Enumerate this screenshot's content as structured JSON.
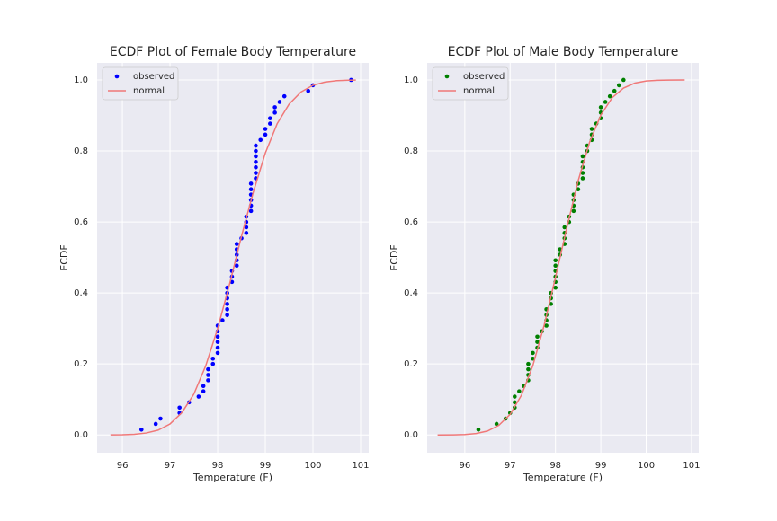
{
  "chart_data": [
    {
      "type": "scatter",
      "title": "ECDF Plot of Female Body Temperature",
      "xlabel": "Temperature (F)",
      "ylabel": "ECDF",
      "xlim": [
        95.47,
        101.17
      ],
      "ylim": [
        -0.05,
        1.048
      ],
      "xticks": [
        96,
        97,
        98,
        99,
        100,
        101
      ],
      "yticks": [
        {
          "value": 0,
          "label": "0.0"
        },
        0.2,
        0.4,
        0.6,
        0.8,
        {
          "value": 1,
          "label": "1.0"
        }
      ],
      "grid": true,
      "legend": "upper left",
      "series": [
        {
          "name": "observed",
          "type": "scatter",
          "color": "#0000ff",
          "x": [
            96.4,
            96.7,
            96.8,
            97.2,
            97.2,
            97.4,
            97.6,
            97.7,
            97.7,
            97.8,
            97.8,
            97.8,
            97.9,
            97.9,
            98.0,
            98.0,
            98.0,
            98.0,
            98.0,
            98.0,
            98.1,
            98.2,
            98.2,
            98.2,
            98.2,
            98.2,
            98.2,
            98.3,
            98.3,
            98.3,
            98.4,
            98.4,
            98.4,
            98.4,
            98.4,
            98.5,
            98.6,
            98.6,
            98.6,
            98.6,
            98.7,
            98.7,
            98.7,
            98.7,
            98.7,
            98.7,
            98.8,
            98.8,
            98.8,
            98.8,
            98.8,
            98.8,
            98.8,
            98.9,
            99.0,
            99.0,
            99.1,
            99.1,
            99.2,
            99.2,
            99.3,
            99.4,
            99.9,
            100.0,
            100.8
          ],
          "values": [
            0.015,
            0.031,
            0.046,
            0.062,
            0.077,
            0.092,
            0.108,
            0.123,
            0.138,
            0.154,
            0.169,
            0.185,
            0.2,
            0.215,
            0.231,
            0.246,
            0.262,
            0.277,
            0.292,
            0.308,
            0.323,
            0.338,
            0.354,
            0.369,
            0.385,
            0.4,
            0.415,
            0.431,
            0.446,
            0.462,
            0.477,
            0.492,
            0.508,
            0.523,
            0.538,
            0.554,
            0.569,
            0.585,
            0.6,
            0.615,
            0.631,
            0.646,
            0.662,
            0.677,
            0.692,
            0.708,
            0.723,
            0.738,
            0.754,
            0.769,
            0.785,
            0.8,
            0.815,
            0.831,
            0.846,
            0.862,
            0.877,
            0.892,
            0.908,
            0.923,
            0.938,
            0.954,
            0.969,
            0.985,
            1.0
          ]
        },
        {
          "name": "normal",
          "type": "line",
          "color": "#f07878",
          "x": [
            95.75,
            96.0,
            96.25,
            96.5,
            96.75,
            97.0,
            97.25,
            97.5,
            97.75,
            98.0,
            98.25,
            98.5,
            98.75,
            99.0,
            99.25,
            99.5,
            99.75,
            100.0,
            100.25,
            100.5,
            100.75,
            100.9
          ],
          "values": [
            0.0002,
            0.0006,
            0.002,
            0.0055,
            0.0136,
            0.031,
            0.063,
            0.115,
            0.195,
            0.3,
            0.425,
            0.56,
            0.685,
            0.794,
            0.877,
            0.932,
            0.966,
            0.985,
            0.994,
            0.998,
            0.9993,
            0.9996
          ]
        }
      ]
    },
    {
      "type": "scatter",
      "title": "ECDF Plot of Male Body Temperature",
      "xlabel": "Temperature (F)",
      "ylabel": "ECDF",
      "xlim": [
        95.17,
        101.16
      ],
      "ylim": [
        -0.05,
        1.048
      ],
      "xticks": [
        96,
        97,
        98,
        99,
        100,
        101
      ],
      "yticks": [
        {
          "value": 0,
          "label": "0.0"
        },
        0.2,
        0.4,
        0.6,
        0.8,
        {
          "value": 1,
          "label": "1.0"
        }
      ],
      "grid": true,
      "legend": "upper left",
      "series": [
        {
          "name": "observed",
          "type": "scatter",
          "color": "#008000",
          "x": [
            96.3,
            96.7,
            96.9,
            97.0,
            97.1,
            97.1,
            97.1,
            97.2,
            97.3,
            97.4,
            97.4,
            97.4,
            97.4,
            97.5,
            97.5,
            97.6,
            97.6,
            97.6,
            97.7,
            97.8,
            97.8,
            97.8,
            97.8,
            97.9,
            97.9,
            97.9,
            98.0,
            98.0,
            98.0,
            98.0,
            98.0,
            98.0,
            98.1,
            98.1,
            98.2,
            98.2,
            98.2,
            98.2,
            98.3,
            98.3,
            98.4,
            98.4,
            98.4,
            98.4,
            98.5,
            98.5,
            98.6,
            98.6,
            98.6,
            98.6,
            98.6,
            98.7,
            98.7,
            98.8,
            98.8,
            98.8,
            98.9,
            99.0,
            99.0,
            99.0,
            99.1,
            99.2,
            99.3,
            99.4,
            99.5
          ],
          "values": [
            0.015,
            0.031,
            0.046,
            0.062,
            0.077,
            0.092,
            0.108,
            0.123,
            0.138,
            0.154,
            0.169,
            0.185,
            0.2,
            0.215,
            0.231,
            0.246,
            0.262,
            0.277,
            0.292,
            0.308,
            0.323,
            0.338,
            0.354,
            0.369,
            0.385,
            0.4,
            0.415,
            0.431,
            0.446,
            0.462,
            0.477,
            0.492,
            0.508,
            0.523,
            0.538,
            0.554,
            0.569,
            0.585,
            0.6,
            0.615,
            0.631,
            0.646,
            0.662,
            0.677,
            0.692,
            0.708,
            0.723,
            0.738,
            0.754,
            0.769,
            0.785,
            0.8,
            0.815,
            0.831,
            0.846,
            0.862,
            0.877,
            0.892,
            0.908,
            0.923,
            0.938,
            0.954,
            0.969,
            0.985,
            1.0
          ]
        },
        {
          "name": "normal",
          "type": "line",
          "color": "#f07878",
          "x": [
            95.4,
            95.75,
            96.0,
            96.25,
            96.5,
            96.75,
            97.0,
            97.25,
            97.5,
            97.75,
            98.0,
            98.25,
            98.5,
            98.75,
            99.0,
            99.25,
            99.5,
            99.75,
            100.0,
            100.25,
            100.5,
            100.85
          ],
          "values": [
            0.0001,
            0.0004,
            0.0013,
            0.004,
            0.011,
            0.027,
            0.058,
            0.112,
            0.195,
            0.309,
            0.444,
            0.584,
            0.716,
            0.824,
            0.901,
            0.95,
            0.977,
            0.991,
            0.997,
            0.999,
            0.9997,
            1.0
          ]
        }
      ]
    }
  ]
}
